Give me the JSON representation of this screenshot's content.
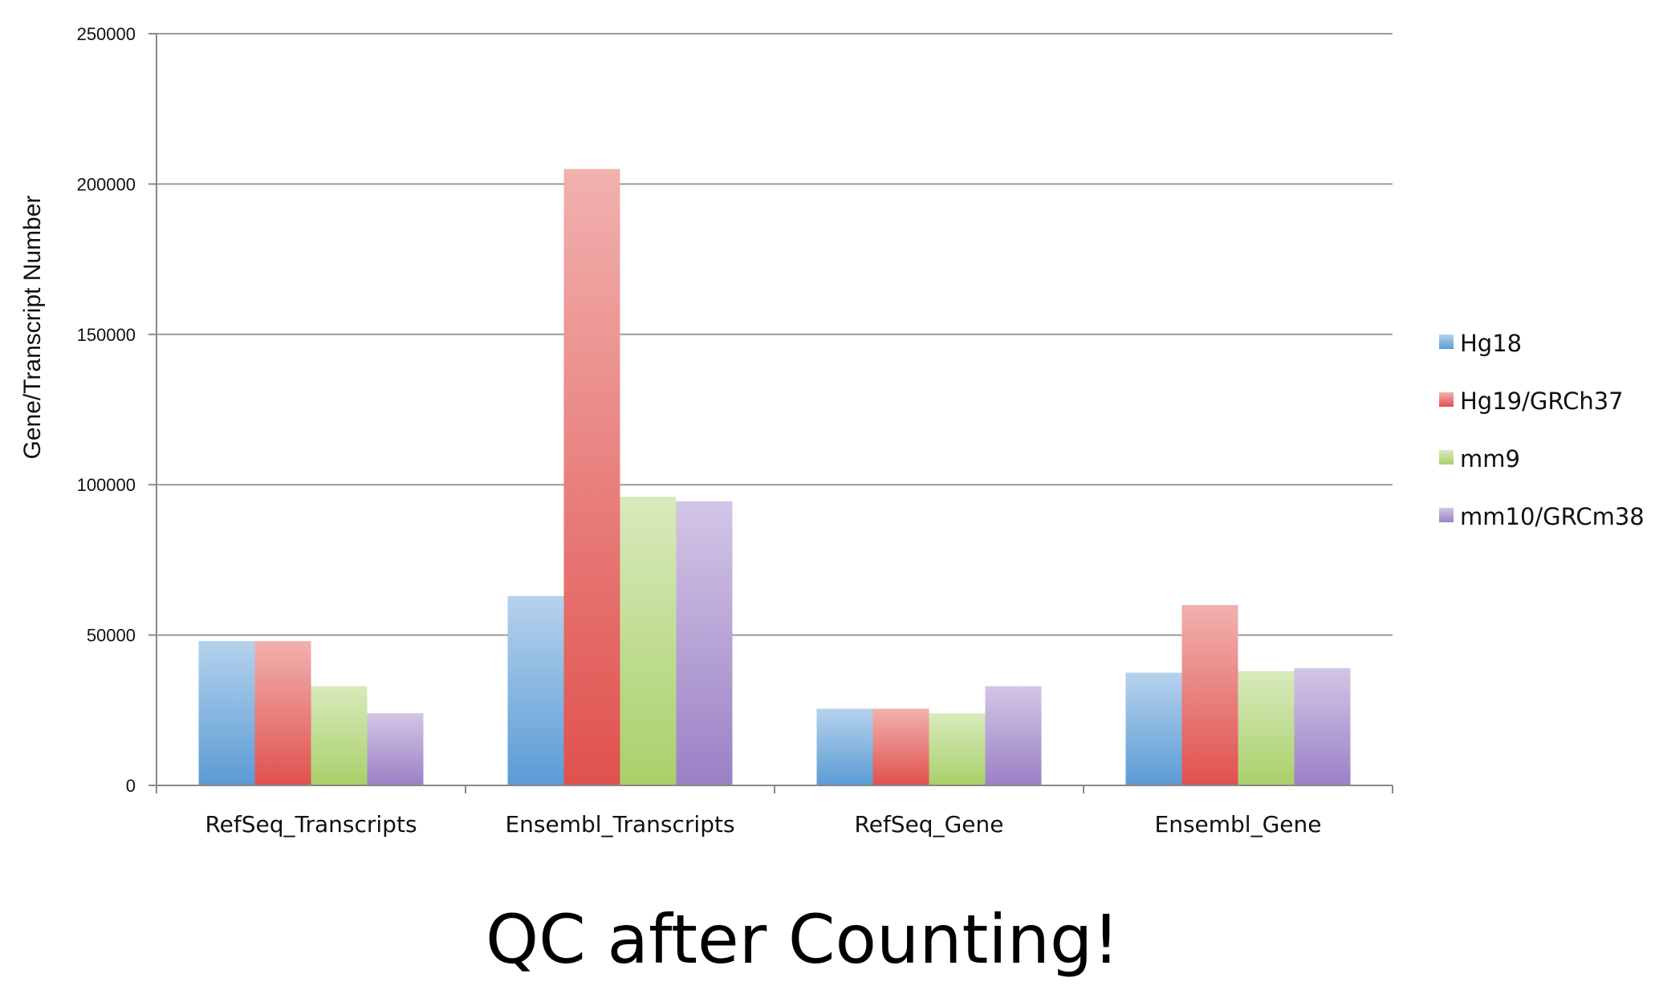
{
  "chart_data": {
    "type": "bar",
    "title": "",
    "xlabel": "",
    "ylabel": "Gene/Transcript Number",
    "ylim": [
      0,
      250000
    ],
    "yticks": [
      0,
      50000,
      100000,
      150000,
      200000,
      250000
    ],
    "grid": true,
    "legend_position": "right",
    "categories": [
      "RefSeq_Transcripts",
      "Ensembl_Transcripts",
      "RefSeq_Gene",
      "Ensembl_Gene"
    ],
    "series": [
      {
        "name": "Hg18",
        "color": "#5b9bd5",
        "values": [
          48000,
          63000,
          25500,
          37500
        ]
      },
      {
        "name": "Hg19/GRCh37",
        "color": "#e0514d",
        "values": [
          48000,
          205000,
          25500,
          60000
        ]
      },
      {
        "name": "mm9",
        "color": "#a9d06a",
        "values": [
          33000,
          96000,
          24000,
          38000
        ]
      },
      {
        "name": "mm10/GRCm38",
        "color": "#9b80c6",
        "values": [
          24000,
          94500,
          33000,
          39000
        ]
      }
    ]
  },
  "footer_title": "QC after Counting!"
}
